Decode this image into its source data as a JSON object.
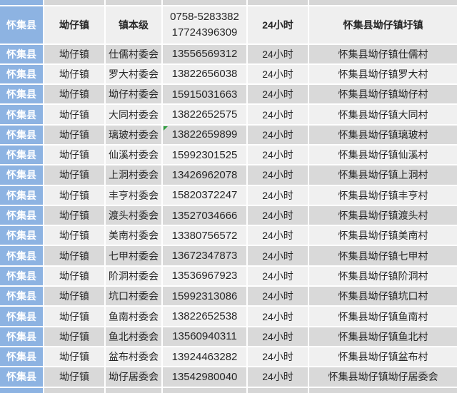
{
  "colors": {
    "county_fill": "#8db3e2",
    "row_gray": "#d9d9d9",
    "row_light": "#f0f0f0",
    "header_fill": "#efefef",
    "sliver_fill": "#d6d6d6",
    "gridline": "#ffffff",
    "text_color": "#262626",
    "county_text": "#ffffff",
    "marker_green": "#2f9e3f"
  },
  "table": {
    "columns": [
      "county",
      "town",
      "unit",
      "phone",
      "hours",
      "address"
    ],
    "header_row": {
      "county": "怀集县",
      "town": "坳仔镇",
      "unit": "镇本级",
      "phone_line1": "0758-5283382",
      "phone_line2": "17724396309",
      "hours": "24小时",
      "address": "怀集县坳仔镇圩镇"
    },
    "rows": [
      {
        "county": "怀集县",
        "town": "坳仔镇",
        "unit": "仕儒村委会",
        "phone": "13556569312",
        "hours": "24小时",
        "address": "怀集县坳仔镇仕儒村"
      },
      {
        "county": "怀集县",
        "town": "坳仔镇",
        "unit": "罗大村委会",
        "phone": "13822656038",
        "hours": "24小时",
        "address": "怀集县坳仔镇罗大村"
      },
      {
        "county": "怀集县",
        "town": "坳仔镇",
        "unit": "坳仔村委会",
        "phone": "15915031663",
        "hours": "24小时",
        "address": "怀集县坳仔镇坳仔村"
      },
      {
        "county": "怀集县",
        "town": "坳仔镇",
        "unit": "大同村委会",
        "phone": "13822652575",
        "hours": "24小时",
        "address": "怀集县坳仔镇大同村"
      },
      {
        "county": "怀集县",
        "town": "坳仔镇",
        "unit": "璃玻村委会",
        "phone": "13822659899",
        "hours": "24小时",
        "address": "怀集县坳仔镇璃玻村",
        "error_marker": true
      },
      {
        "county": "怀集县",
        "town": "坳仔镇",
        "unit": "仙溪村委会",
        "phone": "15992301525",
        "hours": "24小时",
        "address": "怀集县坳仔镇仙溪村"
      },
      {
        "county": "怀集县",
        "town": "坳仔镇",
        "unit": "上洞村委会",
        "phone": "13426962078",
        "hours": "24小时",
        "address": "怀集县坳仔镇上洞村"
      },
      {
        "county": "怀集县",
        "town": "坳仔镇",
        "unit": "丰亨村委会",
        "phone": "15820372247",
        "hours": "24小时",
        "address": "怀集县坳仔镇丰亨村"
      },
      {
        "county": "怀集县",
        "town": "坳仔镇",
        "unit": "渡头村委会",
        "phone": "13527034666",
        "hours": "24小时",
        "address": "怀集县坳仔镇渡头村"
      },
      {
        "county": "怀集县",
        "town": "坳仔镇",
        "unit": "美南村委会",
        "phone": "13380756572",
        "hours": "24小时",
        "address": "怀集县坳仔镇美南村"
      },
      {
        "county": "怀集县",
        "town": "坳仔镇",
        "unit": "七甲村委会",
        "phone": "13672347873",
        "hours": "24小时",
        "address": "怀集县坳仔镇七甲村"
      },
      {
        "county": "怀集县",
        "town": "坳仔镇",
        "unit": "阶洞村委会",
        "phone": "13536967923",
        "hours": "24小时",
        "address": "怀集县坳仔镇阶洞村"
      },
      {
        "county": "怀集县",
        "town": "坳仔镇",
        "unit": "坑口村委会",
        "phone": "15992313086",
        "hours": "24小时",
        "address": "怀集县坳仔镇坑口村"
      },
      {
        "county": "怀集县",
        "town": "坳仔镇",
        "unit": "鱼南村委会",
        "phone": "13822652538",
        "hours": "24小时",
        "address": "怀集县坳仔镇鱼南村"
      },
      {
        "county": "怀集县",
        "town": "坳仔镇",
        "unit": "鱼北村委会",
        "phone": "13560940311",
        "hours": "24小时",
        "address": "怀集县坳仔镇鱼北村"
      },
      {
        "county": "怀集县",
        "town": "坳仔镇",
        "unit": "盆布村委会",
        "phone": "13924463282",
        "hours": "24小时",
        "address": "怀集县坳仔镇盆布村"
      },
      {
        "county": "怀集县",
        "town": "坳仔镇",
        "unit": "坳仔居委会",
        "phone": "13542980040",
        "hours": "24小时",
        "address": "怀集县坳仔镇坳仔居委会"
      }
    ]
  }
}
